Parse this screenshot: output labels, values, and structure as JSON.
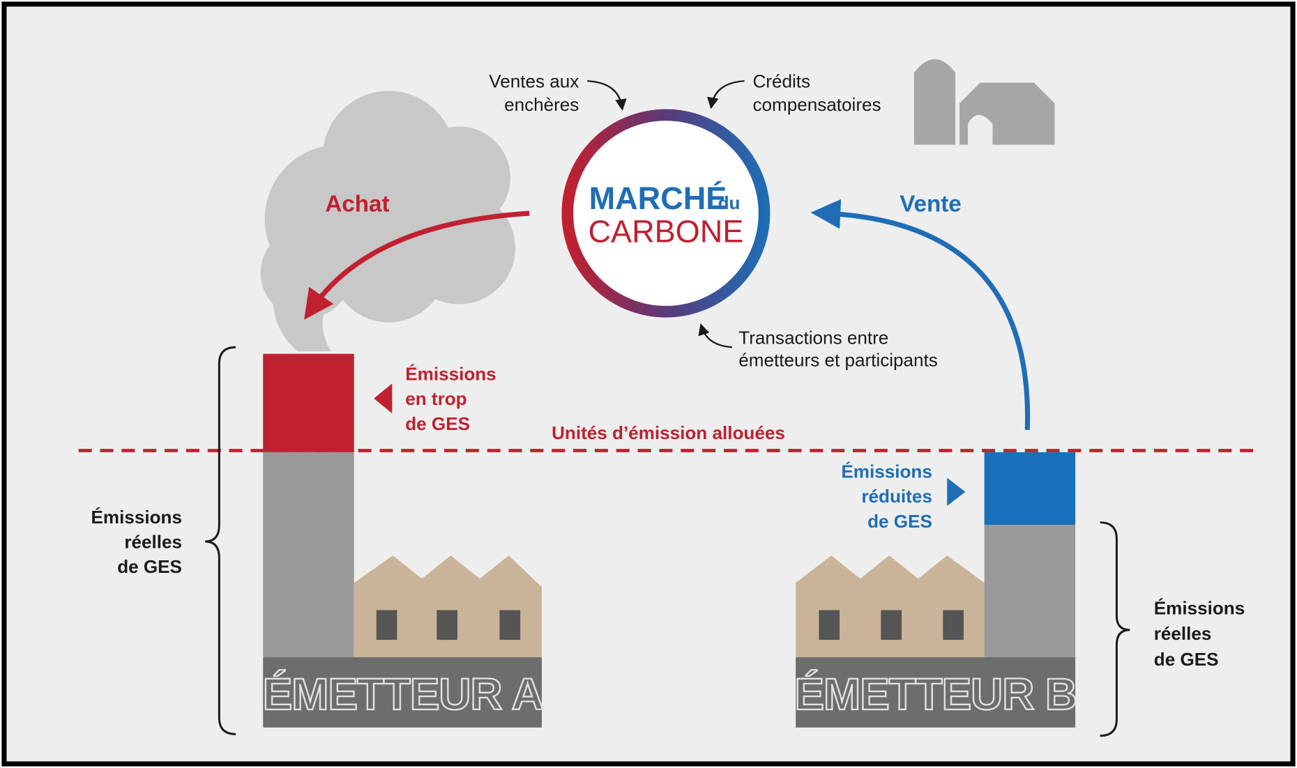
{
  "market": {
    "title_line1": "MARCHÉ",
    "title_du": "du",
    "title_line2": "CARBONE"
  },
  "sources": {
    "auctions": [
      "Ventes aux",
      "enchères"
    ],
    "offsets": [
      "Crédits",
      "compensatoires"
    ],
    "transactions": [
      "Transactions entre",
      "émetteurs et participants"
    ]
  },
  "flows": {
    "buy": "Achat",
    "sell": "Vente"
  },
  "cap_line": "Unités d’émission allouées",
  "emitter_a": {
    "name": "ÉMETTEUR A",
    "excess": [
      "Émissions",
      "en trop",
      "de GES"
    ],
    "actual": [
      "Émissions",
      "réelles",
      "de GES"
    ]
  },
  "emitter_b": {
    "name": "ÉMETTEUR B",
    "reduced": [
      "Émissions",
      "réduites",
      "de GES"
    ],
    "actual": [
      "Émissions",
      "réelles",
      "de GES"
    ]
  }
}
